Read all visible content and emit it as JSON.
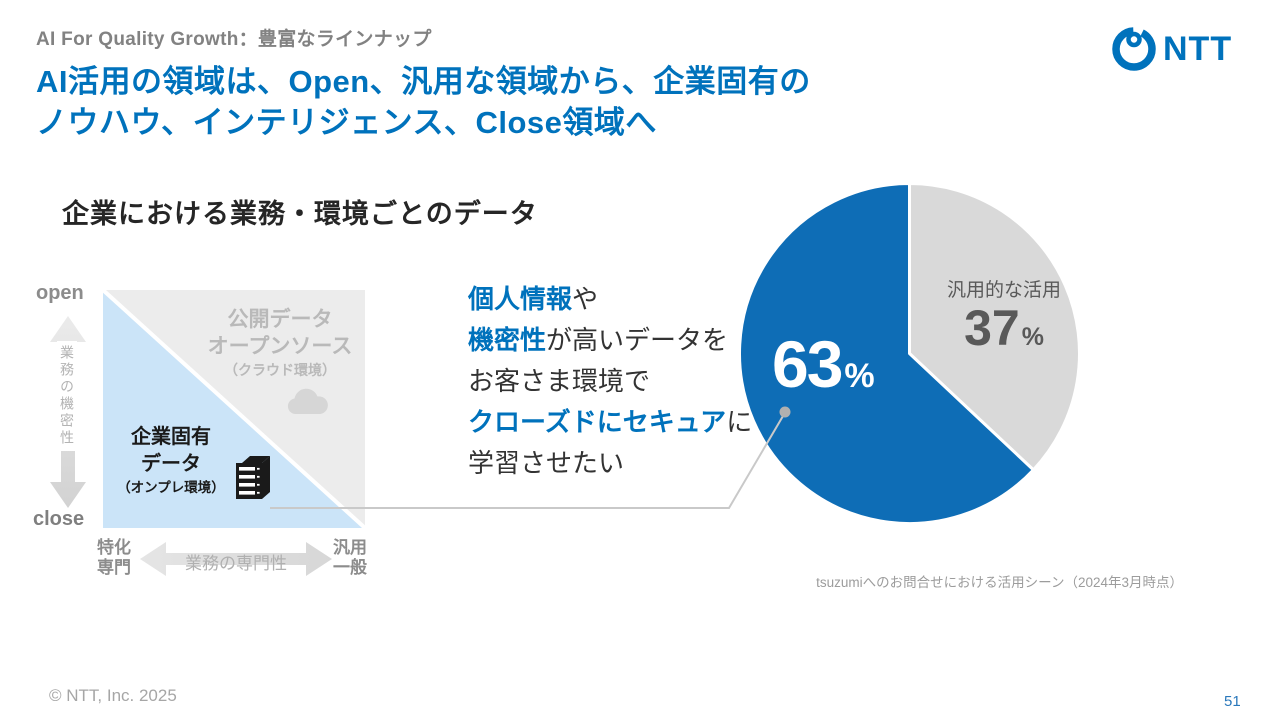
{
  "slide": {
    "kicker": "AI For Quality Growth：豊富なラインナップ",
    "title_line1": "AI活用の領域は、Open、汎用な領域から、企業固有の",
    "title_line2": "ノウハウ、インテリジェンス、Close領域へ",
    "section_heading": "企業における業務・環境ごとのデータ",
    "logo_text": "NTT",
    "footer_copyright": "© NTT, Inc.  2025",
    "page_number": "51"
  },
  "diagram": {
    "y_axis": {
      "top_label": "open",
      "bottom_label": "close",
      "axis_label": "業務の機密性"
    },
    "x_axis": {
      "left_label_line1": "特化",
      "left_label_line2": "専門",
      "right_label_line1": "汎用",
      "right_label_line2": "一般",
      "axis_label": "業務の専門性"
    },
    "open_area": {
      "line1": "公開データ",
      "line2": "オープンソース",
      "line3": "（クラウド環境）"
    },
    "close_area": {
      "line1": "企業固有",
      "line2": "データ",
      "line3": "（オンプレ環境）"
    }
  },
  "statement": {
    "lines": [
      {
        "segments": [
          {
            "text": "個人情報",
            "em": true
          },
          {
            "text": "や",
            "em": false
          }
        ]
      },
      {
        "segments": [
          {
            "text": "機密性",
            "em": true
          },
          {
            "text": "が高いデータを",
            "em": false
          }
        ]
      },
      {
        "segments": [
          {
            "text": "お客さま環境で",
            "em": false
          }
        ]
      },
      {
        "segments": [
          {
            "text": "クローズドにセキュア",
            "em": true
          },
          {
            "text": "に",
            "em": false
          }
        ]
      },
      {
        "segments": [
          {
            "text": "学習させたい",
            "em": false
          }
        ]
      }
    ]
  },
  "chart_data": {
    "type": "pie",
    "caption": "tsuzumiへのお問合せにおける活用シーン（2024年3月時点）",
    "unit": "%",
    "percent_sign": "%",
    "start_at_top": true,
    "direction": "clockwise",
    "labels_inside": true,
    "slices": [
      {
        "label": "汎用的な活用",
        "value": 37,
        "color": "#d9d9d9",
        "text_color": "#595959"
      },
      {
        "label": "",
        "value": 63,
        "color": "#0e6db6",
        "text_color": "#ffffff"
      }
    ]
  },
  "colors": {
    "brand_blue": "#0072bc",
    "pie_blue": "#0e6db6",
    "pie_gray": "#d9d9d9",
    "area_light_blue": "#cbe4f8",
    "area_light_gray": "#ececec"
  }
}
